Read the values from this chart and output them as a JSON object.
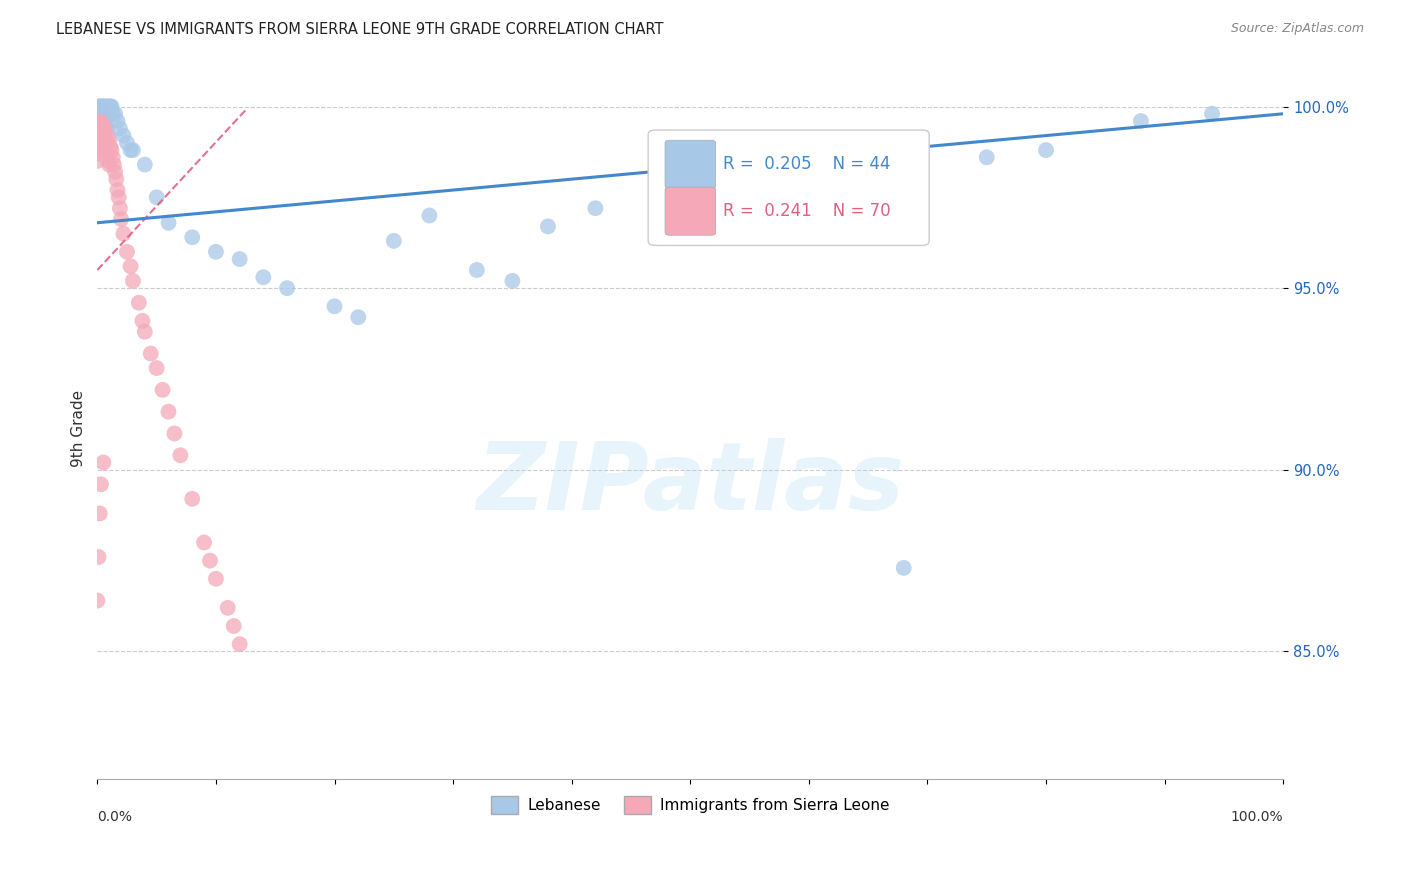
{
  "title": "LEBANESE VS IMMIGRANTS FROM SIERRA LEONE 9TH GRADE CORRELATION CHART",
  "source": "Source: ZipAtlas.com",
  "ylabel": "9th Grade",
  "xlim": [
    0.0,
    1.0
  ],
  "ylim": [
    0.815,
    1.008
  ],
  "yticks": [
    0.85,
    0.9,
    0.95,
    1.0
  ],
  "ytick_labels": [
    "85.0%",
    "90.0%",
    "95.0%",
    "100.0%"
  ],
  "legend_blue_label": "Lebanese",
  "legend_pink_label": "Immigrants from Sierra Leone",
  "R_blue": 0.205,
  "N_blue": 44,
  "R_pink": 0.241,
  "N_pink": 70,
  "blue_color": "#a8c8e8",
  "pink_color": "#f4a8b8",
  "line_blue_color": "#4488cc",
  "line_pink_color": "#e06080",
  "blue_scatter_x": [
    0.001,
    0.002,
    0.003,
    0.004,
    0.005,
    0.006,
    0.007,
    0.008,
    0.009,
    0.01,
    0.011,
    0.012,
    0.013,
    0.015,
    0.017,
    0.019,
    0.022,
    0.025,
    0.028,
    0.03,
    0.04,
    0.05,
    0.06,
    0.08,
    0.1,
    0.12,
    0.14,
    0.16,
    0.2,
    0.22,
    0.25,
    0.28,
    0.32,
    0.35,
    0.38,
    0.42,
    0.48,
    0.55,
    0.62,
    0.68,
    0.75,
    0.8,
    0.88,
    0.94
  ],
  "blue_scatter_y": [
    1.0,
    1.0,
    1.0,
    1.0,
    1.0,
    1.0,
    1.0,
    1.0,
    1.0,
    1.0,
    1.0,
    1.0,
    0.998,
    0.998,
    0.996,
    0.994,
    0.992,
    0.99,
    0.988,
    0.988,
    0.984,
    0.975,
    0.968,
    0.964,
    0.96,
    0.958,
    0.953,
    0.95,
    0.945,
    0.942,
    0.963,
    0.97,
    0.955,
    0.952,
    0.967,
    0.972,
    0.966,
    0.976,
    0.982,
    0.873,
    0.986,
    0.988,
    0.996,
    0.998
  ],
  "pink_scatter_x": [
    0.0,
    0.0,
    0.0,
    0.0,
    0.0,
    0.0,
    0.0,
    0.0,
    0.001,
    0.001,
    0.001,
    0.001,
    0.001,
    0.002,
    0.002,
    0.002,
    0.002,
    0.003,
    0.003,
    0.003,
    0.004,
    0.004,
    0.005,
    0.005,
    0.005,
    0.006,
    0.006,
    0.007,
    0.007,
    0.008,
    0.008,
    0.009,
    0.009,
    0.01,
    0.01,
    0.011,
    0.012,
    0.013,
    0.014,
    0.015,
    0.016,
    0.017,
    0.018,
    0.019,
    0.02,
    0.022,
    0.025,
    0.028,
    0.03,
    0.035,
    0.038,
    0.04,
    0.045,
    0.05,
    0.055,
    0.06,
    0.065,
    0.07,
    0.08,
    0.09,
    0.095,
    0.1,
    0.11,
    0.115,
    0.12,
    0.005,
    0.003,
    0.002,
    0.001,
    0.0
  ],
  "pink_scatter_y": [
    0.999,
    0.997,
    0.995,
    0.993,
    0.991,
    0.989,
    0.987,
    0.985,
    0.999,
    0.997,
    0.995,
    0.993,
    0.991,
    0.999,
    0.997,
    0.995,
    0.989,
    0.998,
    0.996,
    0.99,
    0.997,
    0.993,
    0.998,
    0.994,
    0.988,
    0.996,
    0.991,
    0.995,
    0.989,
    0.994,
    0.987,
    0.992,
    0.985,
    0.991,
    0.984,
    0.989,
    0.988,
    0.986,
    0.984,
    0.982,
    0.98,
    0.977,
    0.975,
    0.972,
    0.969,
    0.965,
    0.96,
    0.956,
    0.952,
    0.946,
    0.941,
    0.938,
    0.932,
    0.928,
    0.922,
    0.916,
    0.91,
    0.904,
    0.892,
    0.88,
    0.875,
    0.87,
    0.862,
    0.857,
    0.852,
    0.902,
    0.896,
    0.888,
    0.876,
    0.864
  ],
  "blue_line_x": [
    0.0,
    1.0
  ],
  "blue_line_y": [
    0.968,
    0.998
  ],
  "pink_line_x": [
    0.0,
    0.125
  ],
  "pink_line_y": [
    0.955,
    0.999
  ],
  "watermark_text": "ZIPatlas",
  "background_color": "#ffffff",
  "grid_color": "#cccccc"
}
